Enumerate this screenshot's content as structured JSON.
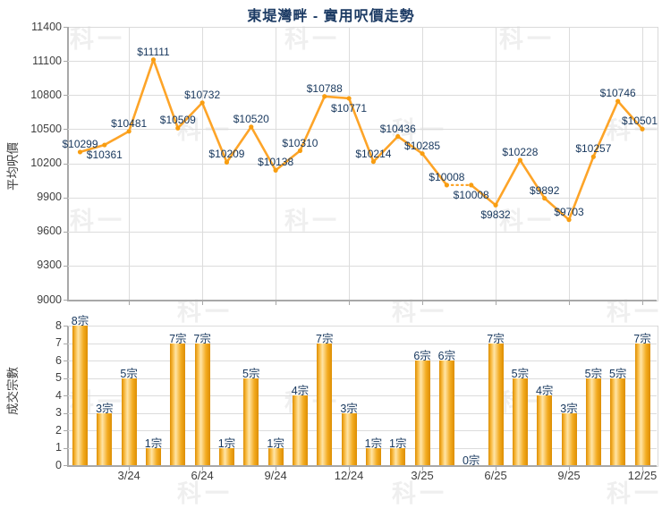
{
  "title": "東堤灣畔 - 實用呎價走勢",
  "watermark": "科一",
  "colors": {
    "line": "#fda428",
    "marker": "#f89d10",
    "bar_edge": "#dd8e02",
    "bar_mid": "#f8b93f",
    "bar_highlight": "#ffe5a6",
    "label_navy": "#17375d",
    "axis_text": "#3f3f3f",
    "grid": "#dcdcdc",
    "axis_line": "#a8a8a8"
  },
  "chart_data": [
    {
      "type": "line",
      "title": "東堤灣畔 - 實用呎價走勢",
      "ylabel": "平均呎價",
      "ylim": [
        9000,
        11400
      ],
      "yticks": [
        9000,
        9300,
        9600,
        9900,
        10200,
        10500,
        10800,
        11100,
        11400
      ],
      "grid": true,
      "x_tick_labels": [
        "3/24",
        "6/24",
        "9/24",
        "12/24",
        "3/25",
        "6/25",
        "9/25",
        "12/25"
      ],
      "x_tick_month_indices": [
        3,
        6,
        9,
        12,
        15,
        18,
        21,
        24
      ],
      "values": [
        10299,
        10361,
        10481,
        11111,
        10509,
        10732,
        10209,
        10520,
        10138,
        10310,
        10788,
        10771,
        10214,
        10436,
        10285,
        10008,
        10008,
        9832,
        10228,
        9892,
        9703,
        10257,
        10746,
        10501
      ],
      "point_labels": [
        "$10299",
        "$10361",
        "$10481",
        "$11111",
        "$10509",
        "$10732",
        "$10209",
        "$10520",
        "$10138",
        "$10310",
        "$10788",
        "$10771",
        "$10214",
        "$10436",
        "$10285",
        "$10008",
        "$10008",
        "$9832",
        "$10228",
        "$9892",
        "$9703",
        "$10257",
        "$10746",
        "$10501"
      ],
      "label_side": [
        "above",
        "below",
        "above",
        "above",
        "above",
        "above",
        "above",
        "above",
        "above",
        "above",
        "above",
        "below",
        "above",
        "above",
        "above",
        "above",
        "below",
        "below",
        "above",
        "above",
        "above",
        "above",
        "above",
        "above"
      ],
      "dashed_segments": [
        [
          15,
          16
        ]
      ]
    },
    {
      "type": "bar",
      "ylabel": "成交宗數",
      "ylim": [
        0,
        8
      ],
      "yticks": [
        0,
        1,
        2,
        3,
        4,
        5,
        6,
        7,
        8
      ],
      "grid": true,
      "values": [
        8,
        3,
        5,
        1,
        7,
        7,
        1,
        5,
        1,
        4,
        7,
        3,
        1,
        1,
        6,
        6,
        0,
        7,
        5,
        4,
        3,
        5,
        5,
        7
      ],
      "bar_labels": [
        "8宗",
        "3宗",
        "5宗",
        "1宗",
        "7宗",
        "7宗",
        "1宗",
        "5宗",
        "1宗",
        "4宗",
        "7宗",
        "3宗",
        "1宗",
        "1宗",
        "6宗",
        "6宗",
        "0宗",
        "7宗",
        "5宗",
        "4宗",
        "3宗",
        "5宗",
        "5宗",
        "7宗"
      ]
    }
  ]
}
